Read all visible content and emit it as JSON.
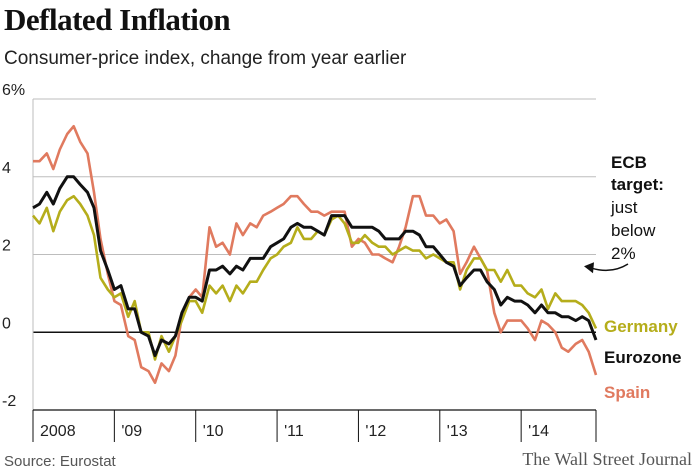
{
  "chart_data": {
    "type": "line",
    "title": "Deflated Inflation",
    "subtitle": "Consumer-price index, change from year earlier",
    "ylim": [
      -2,
      6
    ],
    "y_ticks": [
      "6%",
      "4",
      "2",
      "0",
      "-2"
    ],
    "y_tick_values": [
      6,
      4,
      2,
      0,
      -2
    ],
    "x_ticks": [
      "2008",
      "'09",
      "'10",
      "'11",
      "'12",
      "'13",
      "'14"
    ],
    "x_tick_values": [
      2008,
      2009,
      2010,
      2011,
      2012,
      2013,
      2014
    ],
    "xlim": [
      2008,
      2014.92
    ],
    "grid": true,
    "series": [
      {
        "name": "Germany",
        "color": "#b5ad1b",
        "x": [
          2008.0,
          2008.08,
          2008.17,
          2008.25,
          2008.33,
          2008.42,
          2008.5,
          2008.58,
          2008.67,
          2008.75,
          2008.83,
          2008.92,
          2009.0,
          2009.08,
          2009.17,
          2009.25,
          2009.33,
          2009.42,
          2009.5,
          2009.58,
          2009.67,
          2009.75,
          2009.83,
          2009.92,
          2010.0,
          2010.08,
          2010.17,
          2010.25,
          2010.33,
          2010.42,
          2010.5,
          2010.58,
          2010.67,
          2010.75,
          2010.83,
          2010.92,
          2011.0,
          2011.08,
          2011.17,
          2011.25,
          2011.33,
          2011.42,
          2011.5,
          2011.58,
          2011.67,
          2011.75,
          2011.83,
          2011.92,
          2012.0,
          2012.08,
          2012.17,
          2012.25,
          2012.33,
          2012.42,
          2012.5,
          2012.58,
          2012.67,
          2012.75,
          2012.83,
          2012.92,
          2013.0,
          2013.08,
          2013.17,
          2013.25,
          2013.33,
          2013.42,
          2013.5,
          2013.58,
          2013.67,
          2013.75,
          2013.83,
          2013.92,
          2014.0,
          2014.08,
          2014.17,
          2014.25,
          2014.33,
          2014.42,
          2014.5,
          2014.58,
          2014.67,
          2014.75,
          2014.83,
          2014.92
        ],
        "values": [
          3.0,
          2.8,
          3.2,
          2.6,
          3.1,
          3.4,
          3.5,
          3.3,
          3.0,
          2.5,
          1.4,
          1.1,
          0.9,
          1.0,
          0.4,
          0.8,
          0.0,
          0.0,
          -0.7,
          -0.1,
          -0.5,
          -0.1,
          0.3,
          0.8,
          0.8,
          0.5,
          1.2,
          1.0,
          1.2,
          0.8,
          1.2,
          1.0,
          1.3,
          1.3,
          1.6,
          1.9,
          2.0,
          2.2,
          2.3,
          2.7,
          2.4,
          2.4,
          2.6,
          2.5,
          2.9,
          3.0,
          2.8,
          2.3,
          2.3,
          2.5,
          2.3,
          2.2,
          2.2,
          2.0,
          2.1,
          2.2,
          2.1,
          2.1,
          1.9,
          2.0,
          1.9,
          1.8,
          1.8,
          1.1,
          1.6,
          1.9,
          1.9,
          1.6,
          1.6,
          1.3,
          1.6,
          1.2,
          1.2,
          1.0,
          0.9,
          1.1,
          0.6,
          1.0,
          0.8,
          0.8,
          0.8,
          0.7,
          0.5,
          0.1
        ]
      },
      {
        "name": "Eurozone",
        "color": "#111111",
        "x": [
          2008.0,
          2008.08,
          2008.17,
          2008.25,
          2008.33,
          2008.42,
          2008.5,
          2008.58,
          2008.67,
          2008.75,
          2008.83,
          2008.92,
          2009.0,
          2009.08,
          2009.17,
          2009.25,
          2009.33,
          2009.42,
          2009.5,
          2009.58,
          2009.67,
          2009.75,
          2009.83,
          2009.92,
          2010.0,
          2010.08,
          2010.17,
          2010.25,
          2010.33,
          2010.42,
          2010.5,
          2010.58,
          2010.67,
          2010.75,
          2010.83,
          2010.92,
          2011.0,
          2011.08,
          2011.17,
          2011.25,
          2011.33,
          2011.42,
          2011.5,
          2011.58,
          2011.67,
          2011.75,
          2011.83,
          2011.92,
          2012.0,
          2012.08,
          2012.17,
          2012.25,
          2012.33,
          2012.42,
          2012.5,
          2012.58,
          2012.67,
          2012.75,
          2012.83,
          2012.92,
          2013.0,
          2013.08,
          2013.17,
          2013.25,
          2013.33,
          2013.42,
          2013.5,
          2013.58,
          2013.67,
          2013.75,
          2013.83,
          2013.92,
          2014.0,
          2014.08,
          2014.17,
          2014.25,
          2014.33,
          2014.42,
          2014.5,
          2014.58,
          2014.67,
          2014.75,
          2014.83,
          2014.92
        ],
        "values": [
          3.2,
          3.3,
          3.6,
          3.3,
          3.7,
          4.0,
          4.0,
          3.8,
          3.6,
          3.2,
          2.1,
          1.6,
          1.1,
          1.2,
          0.6,
          0.6,
          0.0,
          -0.1,
          -0.6,
          -0.2,
          -0.3,
          -0.1,
          0.5,
          0.9,
          0.9,
          0.8,
          1.6,
          1.6,
          1.7,
          1.5,
          1.7,
          1.6,
          1.9,
          1.9,
          1.9,
          2.2,
          2.3,
          2.4,
          2.7,
          2.8,
          2.7,
          2.7,
          2.6,
          2.5,
          3.0,
          3.0,
          3.0,
          2.7,
          2.7,
          2.7,
          2.7,
          2.6,
          2.4,
          2.4,
          2.4,
          2.6,
          2.6,
          2.5,
          2.2,
          2.2,
          2.0,
          1.8,
          1.7,
          1.2,
          1.4,
          1.6,
          1.6,
          1.3,
          1.1,
          0.7,
          0.9,
          0.8,
          0.8,
          0.7,
          0.5,
          0.7,
          0.5,
          0.5,
          0.4,
          0.4,
          0.3,
          0.4,
          0.3,
          -0.2
        ]
      },
      {
        "name": "Spain",
        "color": "#e07a5f",
        "x": [
          2008.0,
          2008.08,
          2008.17,
          2008.25,
          2008.33,
          2008.42,
          2008.5,
          2008.58,
          2008.67,
          2008.75,
          2008.83,
          2008.92,
          2009.0,
          2009.08,
          2009.17,
          2009.25,
          2009.33,
          2009.42,
          2009.5,
          2009.58,
          2009.67,
          2009.75,
          2009.83,
          2009.92,
          2010.0,
          2010.08,
          2010.17,
          2010.25,
          2010.33,
          2010.42,
          2010.5,
          2010.58,
          2010.67,
          2010.75,
          2010.83,
          2010.92,
          2011.0,
          2011.08,
          2011.17,
          2011.25,
          2011.33,
          2011.42,
          2011.5,
          2011.58,
          2011.67,
          2011.75,
          2011.83,
          2011.92,
          2012.0,
          2012.08,
          2012.17,
          2012.25,
          2012.33,
          2012.42,
          2012.5,
          2012.58,
          2012.67,
          2012.75,
          2012.83,
          2012.92,
          2013.0,
          2013.08,
          2013.17,
          2013.25,
          2013.33,
          2013.42,
          2013.5,
          2013.58,
          2013.67,
          2013.75,
          2013.83,
          2013.92,
          2014.0,
          2014.08,
          2014.17,
          2014.25,
          2014.33,
          2014.42,
          2014.5,
          2014.58,
          2014.67,
          2014.75,
          2014.83,
          2014.92
        ],
        "values": [
          4.4,
          4.4,
          4.6,
          4.2,
          4.7,
          5.1,
          5.3,
          4.9,
          4.6,
          3.6,
          2.4,
          1.5,
          0.8,
          0.7,
          -0.1,
          -0.2,
          -0.9,
          -1.0,
          -1.3,
          -0.8,
          -1.0,
          -0.6,
          0.4,
          0.9,
          1.1,
          0.9,
          2.7,
          2.2,
          2.3,
          2.0,
          2.8,
          2.5,
          2.8,
          2.7,
          3.0,
          3.1,
          3.2,
          3.3,
          3.5,
          3.5,
          3.3,
          3.1,
          3.1,
          3.0,
          3.1,
          3.1,
          3.1,
          2.2,
          2.4,
          2.3,
          2.0,
          2.0,
          1.9,
          1.8,
          2.2,
          2.7,
          3.5,
          3.5,
          3.0,
          3.0,
          2.8,
          2.9,
          2.6,
          1.5,
          1.8,
          2.2,
          1.9,
          1.6,
          0.5,
          0.0,
          0.3,
          0.3,
          0.3,
          0.1,
          -0.2,
          0.3,
          0.2,
          0.0,
          -0.4,
          -0.5,
          -0.3,
          -0.2,
          -0.5,
          -1.1
        ]
      }
    ],
    "annotation": {
      "lines": [
        "ECB",
        "target:",
        "just",
        "below",
        "2%"
      ],
      "bold_lines": 2,
      "arrow_target_y": 1.8
    }
  },
  "footer": {
    "source": "Source: Eurostat",
    "credit": "The Wall Street Journal"
  }
}
